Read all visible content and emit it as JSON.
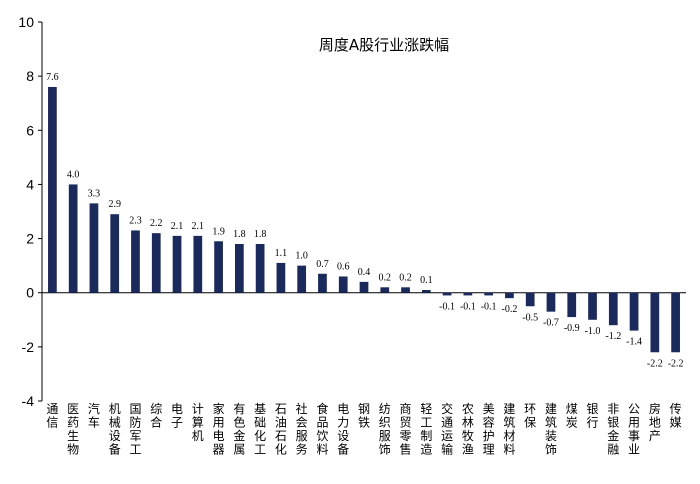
{
  "chart_data": {
    "type": "bar",
    "title": "周度A股行业涨跌幅",
    "xlabel": "",
    "ylabel": "",
    "ylim": [
      -4,
      10
    ],
    "yticks": [
      10,
      8,
      6,
      4,
      2,
      0,
      -2,
      -4
    ],
    "grid": false,
    "legend": "none",
    "bar_color": "#1b2a5c",
    "categories": [
      "通信",
      "医药生物",
      "汽车",
      "机械设备",
      "国防军工",
      "综合",
      "电子",
      "计算机",
      "家用电器",
      "有色金属",
      "基础化工",
      "石油石化",
      "社会服务",
      "食品饮料",
      "电力设备",
      "钢铁",
      "纺织服饰",
      "商贸零售",
      "轻工制造",
      "交通运输",
      "农林牧渔",
      "美容护理",
      "建筑材料",
      "环保",
      "建筑装饰",
      "煤炭",
      "银行",
      "非银金融",
      "公用事业",
      "房地产",
      "传媒"
    ],
    "values": [
      7.6,
      4.0,
      3.3,
      2.9,
      2.3,
      2.2,
      2.1,
      2.1,
      1.9,
      1.8,
      1.8,
      1.1,
      1.0,
      0.7,
      0.6,
      0.4,
      0.2,
      0.2,
      0.1,
      -0.1,
      -0.1,
      -0.1,
      -0.2,
      -0.5,
      -0.7,
      -0.9,
      -1.0,
      -1.2,
      -1.4,
      -2.2,
      -2.2
    ],
    "value_labels": [
      "7.6",
      "4.0",
      "3.3",
      "2.9",
      "2.3",
      "2.2",
      "2.1",
      "2.1",
      "1.9",
      "1.8",
      "1.8",
      "1.1",
      "1.0",
      "0.7",
      "0.6",
      "0.4",
      "0.2",
      "0.2",
      "0.1",
      "-0.1",
      "-0.1",
      "-0.1",
      "-0.2",
      "-0.5",
      "-0.7",
      "-0.9",
      "-1.0",
      "-1.2",
      "-1.4",
      "-2.2",
      "-2.2"
    ]
  }
}
